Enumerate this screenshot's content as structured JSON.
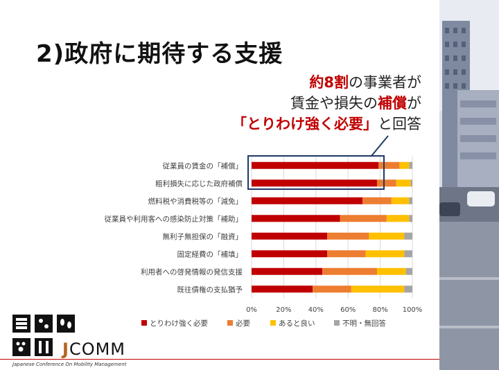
{
  "slide": {
    "title": "2)政府に期待する支援",
    "callout": {
      "line1_hl": "約8割",
      "line1_rest": "の事業者が",
      "line2_pre": "賃金や損失の",
      "line2_hl": "補償",
      "line2_post": "が",
      "line3_hl": "「とりわけ強く必要」",
      "line3_post": "と回答"
    },
    "logo": {
      "text_j": "J",
      "text_rest": "COMM",
      "subtitle": "Japanese Conference On Mobility Management"
    }
  },
  "colors": {
    "accent": "#c00000",
    "must": "#c00000",
    "need": "#ed7d31",
    "nice": "#ffc000",
    "unknown": "#a5a5a5",
    "highlight_box": "#1f3864"
  },
  "chart_data": {
    "type": "bar",
    "orientation": "horizontal",
    "stacked": true,
    "percent_stacked": true,
    "categories": [
      "従業員の賃金の「補償」",
      "粗利損失に応じた政府補償",
      "燃料税や消費税等の「減免」",
      "従業員や利用客への感染防止対策「補助」",
      "無利子無担保の「融資」",
      "固定経費の「補填」",
      "利用者への啓発情報の発信支援",
      "既往債権の支払猶予"
    ],
    "series": [
      {
        "name": "とりわけ強く必要",
        "color": "#c00000",
        "values": [
          79,
          78,
          69,
          55,
          47,
          47,
          44,
          38
        ]
      },
      {
        "name": "必要",
        "color": "#ed7d31",
        "values": [
          13,
          12,
          18,
          29,
          26,
          24,
          34,
          24
        ]
      },
      {
        "name": "あると良い",
        "color": "#ffc000",
        "values": [
          6,
          9,
          11,
          14,
          22,
          24,
          18,
          33
        ]
      },
      {
        "name": "不明・無回答",
        "color": "#a5a5a5",
        "values": [
          2,
          1,
          2,
          2,
          5,
          5,
          4,
          5
        ]
      }
    ],
    "xlim": [
      0,
      100
    ],
    "xticks": [
      "0%",
      "20%",
      "40%",
      "60%",
      "80%",
      "100%"
    ],
    "legend_position": "bottom",
    "grid": true
  }
}
